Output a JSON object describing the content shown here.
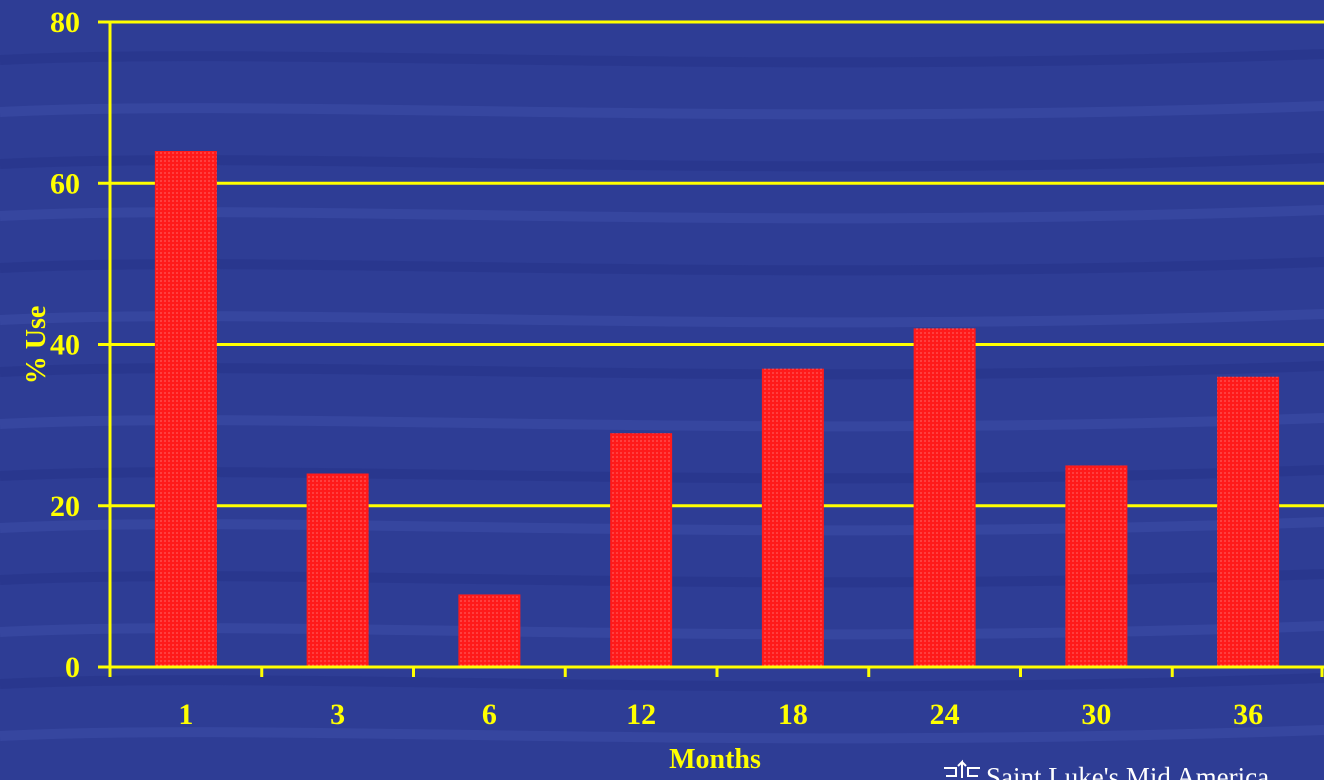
{
  "chart_data": {
    "type": "bar",
    "title": "",
    "xlabel": "Months",
    "ylabel": "% Use",
    "categories": [
      "1",
      "3",
      "6",
      "12",
      "18",
      "24",
      "30",
      "36"
    ],
    "values": [
      64,
      24,
      9,
      29,
      37,
      42,
      25,
      36
    ],
    "ylim": [
      0,
      80
    ],
    "yticks": [
      "0",
      "20",
      "40",
      "60",
      "80"
    ],
    "grid": true,
    "legend": "none",
    "colors": {
      "background": "#2e3d95",
      "bar": "#ff1a1a",
      "grid": "#ffff00",
      "text": "#ffff00"
    }
  },
  "branding": {
    "text": "Saint Luke's Mid America",
    "icon": "logo-icon"
  }
}
